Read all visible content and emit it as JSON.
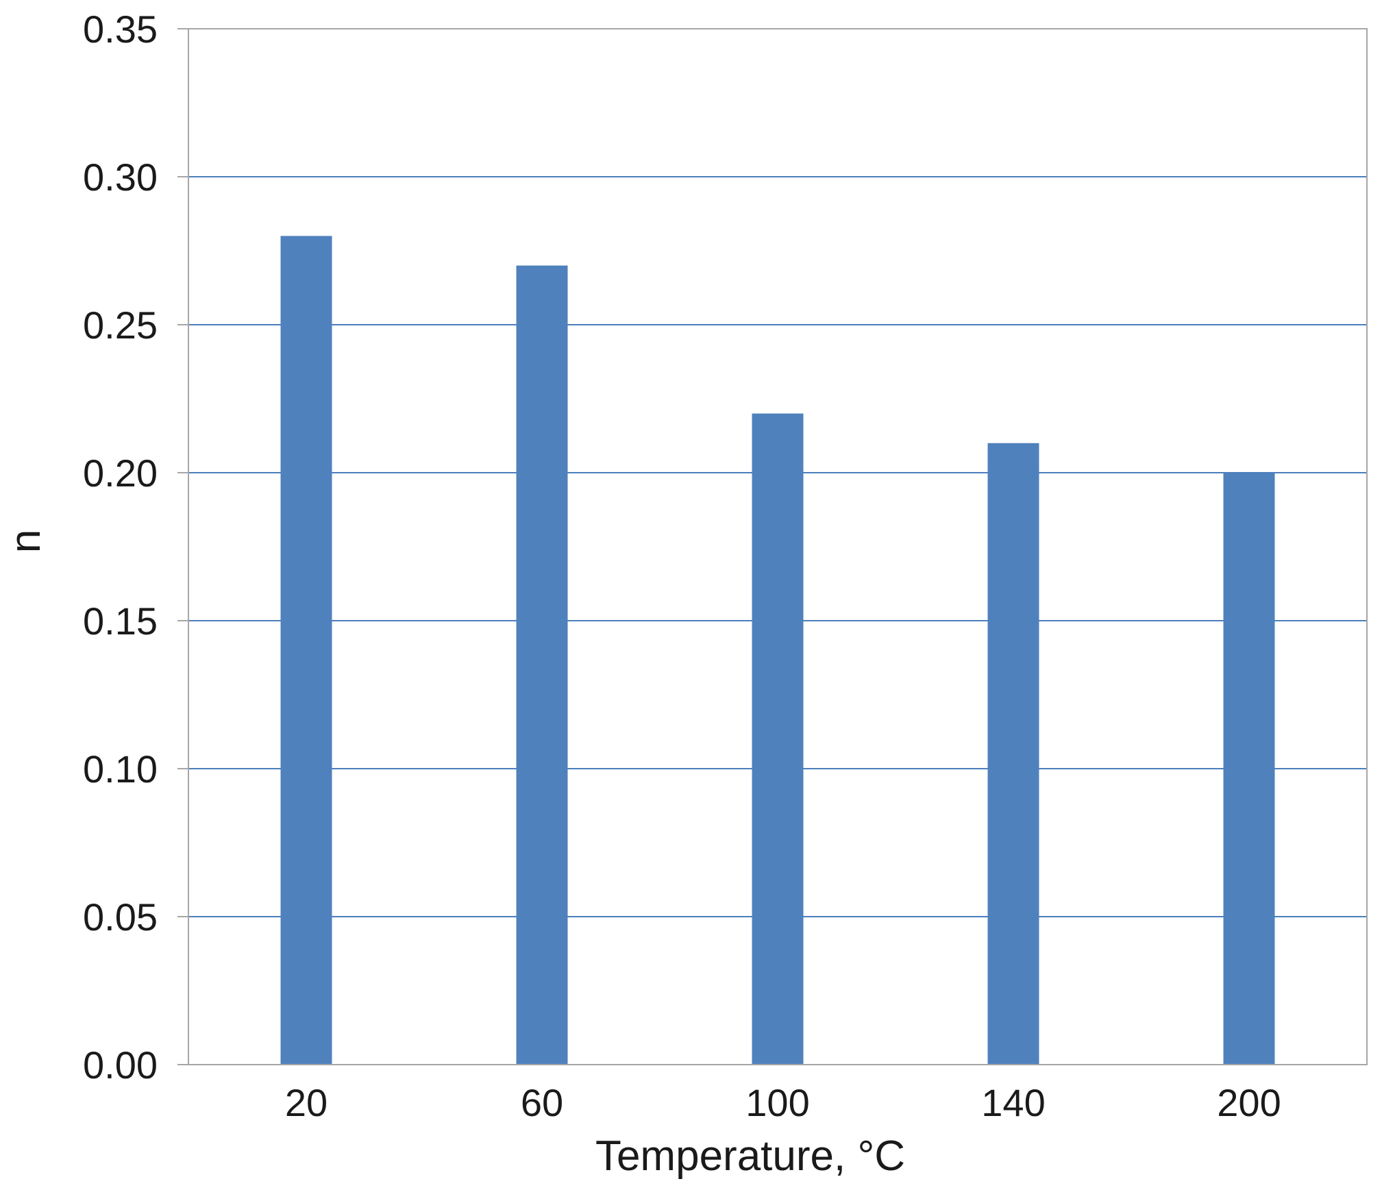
{
  "chart_data": {
    "type": "bar",
    "title": "",
    "xlabel": "Temperature, °C",
    "ylabel": "n",
    "categories": [
      "20",
      "60",
      "100",
      "140",
      "200"
    ],
    "values": [
      0.28,
      0.27,
      0.22,
      0.21,
      0.2
    ],
    "ylim": [
      0,
      0.35
    ],
    "yticks": [
      "0.00",
      "0.05",
      "0.10",
      "0.15",
      "0.20",
      "0.25",
      "0.30",
      "0.35"
    ],
    "grid": true,
    "legend": "none",
    "colors": {
      "bar": "#4f81bd",
      "grid": "#4a7ebb",
      "frame": "#a6a6a6"
    }
  }
}
